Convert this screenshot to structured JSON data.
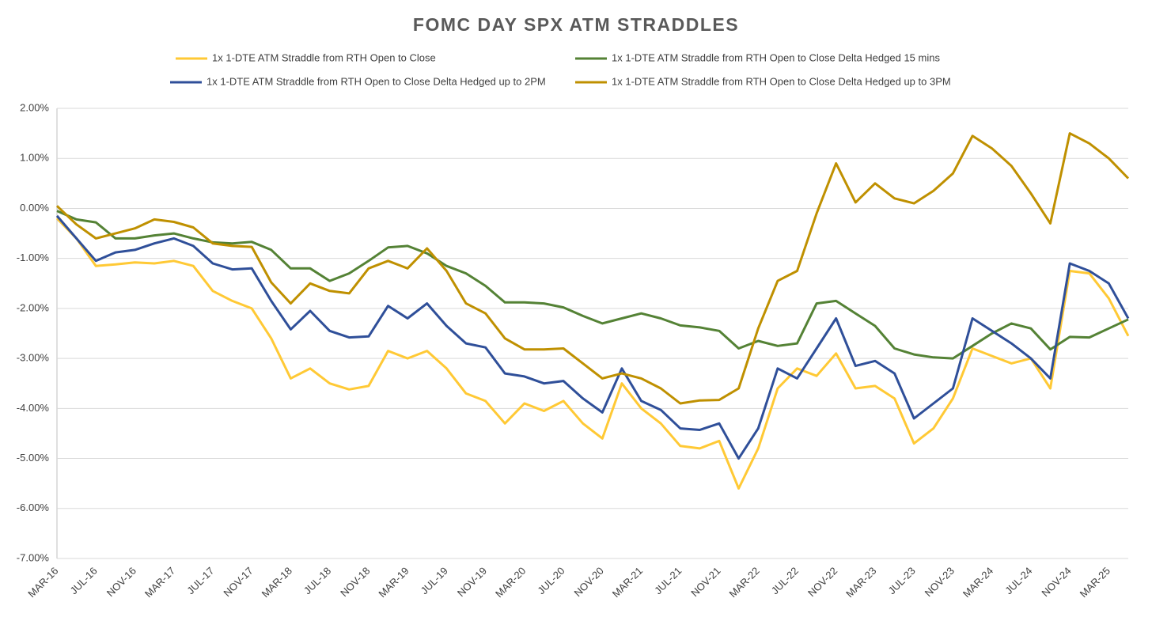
{
  "chart_data": {
    "type": "line",
    "title": "FOMC DAY SPX ATM STRADDLES",
    "categories": [
      "MAR-16",
      null,
      "JUL-16",
      null,
      "NOV-16",
      null,
      "MAR-17",
      null,
      "JUL-17",
      null,
      "NOV-17",
      null,
      "MAR-18",
      null,
      "JUL-18",
      null,
      "NOV-18",
      null,
      "MAR-19",
      null,
      "JUL-19",
      null,
      "NOV-19",
      null,
      "MAR-20",
      null,
      "JUL-20",
      null,
      "NOV-20",
      null,
      "MAR-21",
      null,
      "JUL-21",
      null,
      "NOV-21",
      null,
      "MAR-22",
      null,
      "JUL-22",
      null,
      "NOV-22",
      null,
      "MAR-23",
      null,
      "JUL-23",
      null,
      "NOV-23",
      null,
      "MAR-24",
      null,
      "JUL-24",
      null,
      "NOV-24",
      null,
      "MAR-25",
      null
    ],
    "series": [
      {
        "name": "1x 1-DTE ATM Straddle from RTH Open to Close",
        "color": "#ffc935",
        "values": [
          -0.2,
          -0.6,
          -1.15,
          -1.12,
          -1.08,
          -1.1,
          -1.05,
          -1.15,
          -1.65,
          -1.85,
          -2.0,
          -2.6,
          -3.4,
          -3.2,
          -3.5,
          -3.62,
          -3.55,
          -2.85,
          -3.0,
          -2.85,
          -3.2,
          -3.7,
          -3.85,
          -4.3,
          -3.9,
          -4.05,
          -3.85,
          -4.3,
          -4.6,
          -3.5,
          -4.0,
          -4.3,
          -4.75,
          -4.8,
          -4.65,
          -5.6,
          -4.8,
          -3.6,
          -3.2,
          -3.35,
          -2.9,
          -3.6,
          -3.55,
          -3.8,
          -4.7,
          -4.4,
          -3.8,
          -2.8,
          -2.95,
          -3.1,
          -3.0,
          -3.6,
          -1.25,
          -1.3,
          -1.8,
          -2.55
        ]
      },
      {
        "name": "1x 1-DTE ATM Straddle from RTH Open to Close Delta Hedged 15 mins",
        "color": "#548235",
        "values": [
          -0.05,
          -0.22,
          -0.28,
          -0.6,
          -0.6,
          -0.54,
          -0.5,
          -0.6,
          -0.68,
          -0.7,
          -0.67,
          -0.83,
          -1.2,
          -1.2,
          -1.45,
          -1.3,
          -1.05,
          -0.78,
          -0.75,
          -0.9,
          -1.15,
          -1.3,
          -1.55,
          -1.88,
          -1.88,
          -1.9,
          -1.98,
          -2.15,
          -2.3,
          -2.2,
          -2.1,
          -2.2,
          -2.34,
          -2.38,
          -2.45,
          -2.8,
          -2.65,
          -2.75,
          -2.7,
          -1.9,
          -1.85,
          -2.1,
          -2.35,
          -2.8,
          -2.92,
          -2.98,
          -3.0,
          -2.75,
          -2.5,
          -2.3,
          -2.4,
          -2.82,
          -2.57,
          -2.58,
          -2.4,
          -2.22
        ]
      },
      {
        "name": "1x 1-DTE ATM Straddle from RTH Open to Close Delta Hedged up to 2PM",
        "color": "#2f4f99",
        "values": [
          -0.15,
          -0.6,
          -1.05,
          -0.88,
          -0.83,
          -0.7,
          -0.6,
          -0.75,
          -1.1,
          -1.22,
          -1.2,
          -1.85,
          -2.42,
          -2.05,
          -2.45,
          -2.58,
          -2.56,
          -1.95,
          -2.2,
          -1.9,
          -2.35,
          -2.7,
          -2.78,
          -3.3,
          -3.36,
          -3.5,
          -3.45,
          -3.8,
          -4.08,
          -3.2,
          -3.85,
          -4.03,
          -4.4,
          -4.43,
          -4.3,
          -5.0,
          -4.4,
          -3.2,
          -3.4,
          -2.8,
          -2.2,
          -3.15,
          -3.05,
          -3.3,
          -4.2,
          -3.9,
          -3.6,
          -2.2,
          -2.45,
          -2.7,
          -3.0,
          -3.4,
          -1.1,
          -1.25,
          -1.5,
          -2.2
        ]
      },
      {
        "name": "1x 1-DTE ATM Straddle from RTH Open to Close Delta Hedged up to 3PM",
        "color": "#bf9000",
        "values": [
          0.05,
          -0.32,
          -0.6,
          -0.5,
          -0.4,
          -0.22,
          -0.27,
          -0.38,
          -0.7,
          -0.75,
          -0.77,
          -1.48,
          -1.9,
          -1.5,
          -1.65,
          -1.7,
          -1.2,
          -1.05,
          -1.2,
          -0.8,
          -1.25,
          -1.9,
          -2.1,
          -2.6,
          -2.82,
          -2.82,
          -2.8,
          -3.1,
          -3.4,
          -3.3,
          -3.4,
          -3.6,
          -3.9,
          -3.84,
          -3.83,
          -3.6,
          -2.4,
          -1.45,
          -1.25,
          -0.1,
          0.9,
          0.12,
          0.5,
          0.2,
          0.1,
          0.35,
          0.7,
          1.45,
          1.2,
          0.85,
          0.3,
          -0.3,
          1.5,
          1.3,
          1.0,
          0.6
        ]
      }
    ],
    "ylim": [
      -7,
      2
    ],
    "yticks": [
      {
        "value": -7,
        "label": "-7.00%"
      },
      {
        "value": -6,
        "label": "-6.00%"
      },
      {
        "value": -5,
        "label": "-5.00%"
      },
      {
        "value": -4,
        "label": "-4.00%"
      },
      {
        "value": -3,
        "label": "-3.00%"
      },
      {
        "value": -2,
        "label": "-2.00%"
      },
      {
        "value": -1,
        "label": "-1.00%"
      },
      {
        "value": 0,
        "label": "0.00%"
      },
      {
        "value": 1,
        "label": "1.00%"
      },
      {
        "value": 2,
        "label": "2.00%"
      }
    ],
    "grid": true
  }
}
